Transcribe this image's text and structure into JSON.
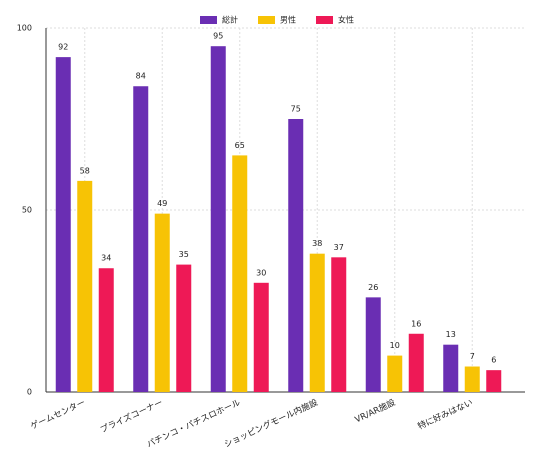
{
  "chart_data": {
    "type": "bar",
    "categories": [
      "ゲームセンター",
      "プライズコーナー",
      "パチンコ・パチスロホール",
      "ショッピングモール内施設",
      "VR/AR施設",
      "特に好みはない"
    ],
    "series": [
      {
        "name": "総計",
        "color": "#6a2eb3",
        "values": [
          92,
          84,
          95,
          75,
          26,
          13
        ]
      },
      {
        "name": "男性",
        "color": "#f7c305",
        "values": [
          58,
          49,
          65,
          38,
          10,
          7
        ]
      },
      {
        "name": "女性",
        "color": "#ee1956",
        "values": [
          34,
          35,
          30,
          37,
          16,
          6
        ]
      }
    ],
    "ylim": [
      0,
      100
    ],
    "yticks": [
      0,
      50,
      100
    ],
    "grid": true,
    "legend": "top"
  }
}
